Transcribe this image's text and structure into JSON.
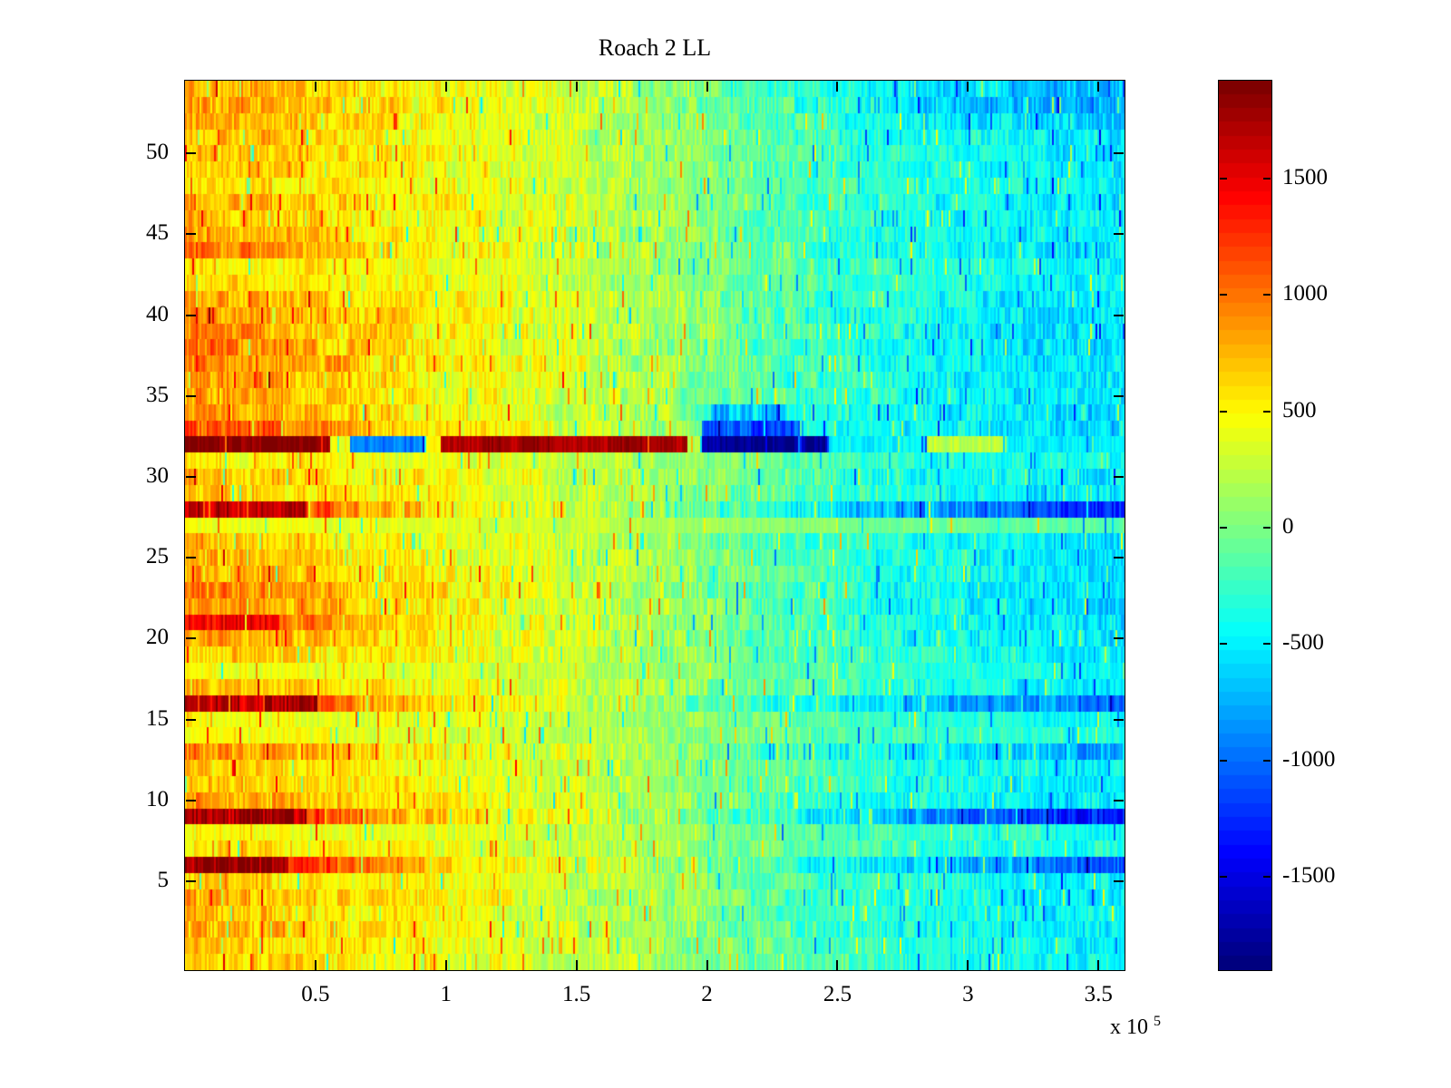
{
  "chart_data": {
    "type": "heatmap",
    "title": "Roach 2 LL",
    "colormap": "jet",
    "grid": false,
    "colorbar_position": "right",
    "x_axis": {
      "range": [
        0,
        360000
      ],
      "tick_values": [
        50000,
        100000,
        150000,
        200000,
        250000,
        300000,
        350000
      ],
      "tick_labels": [
        "0.5",
        "1",
        "1.5",
        "2",
        "2.5",
        "3",
        "3.5"
      ],
      "multiplier_base": "x 10",
      "multiplier_exp": "5"
    },
    "y_axis": {
      "range": [
        -0.5,
        54.5
      ],
      "tick_values": [
        5,
        10,
        15,
        20,
        25,
        30,
        35,
        40,
        45,
        50
      ],
      "tick_labels": [
        "5",
        "10",
        "15",
        "20",
        "25",
        "30",
        "35",
        "40",
        "45",
        "50"
      ]
    },
    "colorbar": {
      "range": [
        -1900,
        1920
      ],
      "tick_values": [
        1500,
        1000,
        500,
        0,
        -500,
        -1000,
        -1500
      ],
      "tick_labels": [
        "1500",
        "1000",
        "500",
        "0",
        "-500",
        "-1000",
        "-1500"
      ]
    },
    "n_rows": 55,
    "n_cols": 518,
    "rows": {
      "note": "Row profiles bottom-to-top (row value 0..54). Values sampled at profile_fracs of the x-range; noise = streak amplitude; segments = [xfrac0, xfrac1, value] overrides for anomalous bands.",
      "profile_fracs": [
        0,
        0.1,
        0.2,
        0.3,
        0.4,
        0.5,
        0.6,
        0.7,
        0.8,
        0.9,
        1
      ],
      "values": [
        [
          650,
          600,
          500,
          420,
          300,
          150,
          -50,
          -200,
          -300,
          -400,
          -480
        ],
        [
          700,
          620,
          520,
          430,
          300,
          160,
          -60,
          -220,
          -330,
          -420,
          -500
        ],
        [
          780,
          690,
          550,
          440,
          310,
          160,
          -70,
          -240,
          -350,
          -440,
          -510
        ],
        [
          750,
          660,
          540,
          430,
          310,
          160,
          -70,
          -230,
          -350,
          -440,
          -510
        ],
        [
          820,
          720,
          570,
          460,
          330,
          170,
          -90,
          -260,
          -380,
          -470,
          -540
        ],
        [
          700,
          630,
          520,
          420,
          300,
          150,
          -70,
          -240,
          -360,
          -450,
          -520
        ],
        [
          1850,
          1520,
          950,
          560,
          350,
          120,
          -200,
          -450,
          -650,
          -900,
          -1150
        ],
        [
          600,
          560,
          480,
          400,
          290,
          150,
          -40,
          -200,
          -300,
          -380,
          -450
        ],
        [
          500,
          470,
          420,
          360,
          260,
          130,
          -30,
          -170,
          -270,
          -350,
          -420
        ],
        [
          1750,
          1400,
          850,
          550,
          350,
          100,
          -250,
          -550,
          -850,
          -1200,
          -1450
        ],
        [
          850,
          740,
          580,
          460,
          330,
          160,
          -100,
          -280,
          -400,
          -500,
          -570
        ],
        [
          750,
          660,
          540,
          440,
          310,
          150,
          -80,
          -250,
          -370,
          -460,
          -530
        ],
        [
          700,
          630,
          520,
          420,
          300,
          150,
          -70,
          -240,
          -360,
          -450,
          -520
        ],
        [
          950,
          820,
          620,
          480,
          340,
          150,
          -150,
          -350,
          -500,
          -650,
          -800
        ],
        [
          480,
          450,
          400,
          340,
          250,
          120,
          -40,
          -180,
          -280,
          -360,
          -430
        ],
        [
          450,
          430,
          390,
          330,
          240,
          110,
          -50,
          -190,
          -290,
          -370,
          -440
        ],
        [
          1650,
          1350,
          820,
          520,
          330,
          100,
          -220,
          -480,
          -700,
          -900,
          -1050
        ],
        [
          800,
          700,
          560,
          450,
          320,
          160,
          -90,
          -260,
          -380,
          -470,
          -540
        ],
        [
          430,
          410,
          370,
          320,
          230,
          100,
          -60,
          -200,
          -300,
          -380,
          -450
        ],
        [
          700,
          630,
          520,
          420,
          300,
          140,
          -80,
          -250,
          -370,
          -460,
          -530
        ],
        [
          850,
          740,
          580,
          460,
          330,
          150,
          -110,
          -290,
          -410,
          -510,
          -580
        ],
        [
          1250,
          1050,
          700,
          480,
          320,
          140,
          -100,
          -280,
          -400,
          -500,
          -570
        ],
        [
          950,
          820,
          620,
          480,
          340,
          160,
          -110,
          -290,
          -420,
          -520,
          -590
        ],
        [
          1050,
          900,
          660,
          500,
          350,
          160,
          -130,
          -310,
          -440,
          -540,
          -610
        ],
        [
          850,
          740,
          580,
          460,
          330,
          150,
          -110,
          -280,
          -410,
          -510,
          -580
        ],
        [
          800,
          700,
          560,
          450,
          320,
          150,
          -100,
          -270,
          -400,
          -500,
          -570
        ],
        [
          750,
          660,
          540,
          430,
          310,
          140,
          -90,
          -260,
          -390,
          -480,
          -550
        ],
        [
          430,
          410,
          380,
          340,
          280,
          190,
          90,
          0,
          -60,
          -120,
          -160
        ],
        [
          1600,
          1300,
          800,
          500,
          320,
          80,
          -300,
          -600,
          -850,
          -1150,
          -1400
        ],
        [
          700,
          630,
          520,
          430,
          310,
          150,
          -80,
          -250,
          -380,
          -470,
          -540
        ],
        [
          780,
          690,
          550,
          440,
          320,
          150,
          -90,
          -260,
          -390,
          -480,
          -550
        ],
        [
          550,
          510,
          450,
          380,
          280,
          140,
          -50,
          -200,
          -320,
          -400,
          -470
        ],
        [
          900,
          780,
          600,
          470,
          330,
          150,
          -110,
          -290,
          -420,
          -520,
          -590
        ],
        [
          1150,
          950,
          680,
          500,
          350,
          180,
          -150,
          -400,
          -450,
          -520,
          -600
        ],
        [
          900,
          780,
          600,
          470,
          330,
          160,
          -200,
          -380,
          -440,
          -520,
          -590
        ],
        [
          850,
          740,
          580,
          460,
          330,
          150,
          -110,
          -280,
          -410,
          -500,
          -570
        ],
        [
          950,
          820,
          620,
          480,
          340,
          160,
          -120,
          -300,
          -430,
          -520,
          -590
        ],
        [
          1000,
          870,
          650,
          500,
          350,
          160,
          -120,
          -300,
          -430,
          -530,
          -600
        ],
        [
          1000,
          870,
          650,
          500,
          350,
          160,
          -130,
          -310,
          -440,
          -540,
          -610
        ],
        [
          950,
          820,
          620,
          480,
          340,
          150,
          -120,
          -300,
          -430,
          -530,
          -600
        ],
        [
          900,
          780,
          600,
          470,
          330,
          150,
          -110,
          -290,
          -420,
          -520,
          -590
        ],
        [
          850,
          740,
          580,
          460,
          330,
          150,
          -110,
          -280,
          -410,
          -510,
          -580
        ],
        [
          600,
          560,
          490,
          410,
          300,
          140,
          -70,
          -230,
          -350,
          -440,
          -510
        ],
        [
          550,
          520,
          460,
          390,
          280,
          130,
          -60,
          -220,
          -340,
          -430,
          -500
        ],
        [
          1000,
          870,
          650,
          500,
          350,
          160,
          -120,
          -300,
          -430,
          -530,
          -600
        ],
        [
          800,
          700,
          560,
          450,
          320,
          150,
          -100,
          -270,
          -400,
          -490,
          -560
        ],
        [
          750,
          660,
          540,
          430,
          310,
          140,
          -90,
          -260,
          -390,
          -480,
          -550
        ],
        [
          820,
          720,
          570,
          460,
          330,
          150,
          -100,
          -270,
          -400,
          -490,
          -560
        ],
        [
          600,
          560,
          490,
          410,
          300,
          140,
          -70,
          -230,
          -350,
          -440,
          -510
        ],
        [
          750,
          660,
          540,
          430,
          310,
          140,
          -90,
          -260,
          -390,
          -480,
          -550
        ],
        [
          800,
          700,
          560,
          450,
          320,
          150,
          -100,
          -270,
          -400,
          -490,
          -560
        ],
        [
          780,
          690,
          550,
          440,
          310,
          150,
          -90,
          -260,
          -390,
          -480,
          -550
        ],
        [
          850,
          740,
          580,
          460,
          330,
          140,
          -130,
          -320,
          -480,
          -600,
          -700
        ],
        [
          900,
          780,
          600,
          470,
          330,
          130,
          -160,
          -380,
          -600,
          -750,
          -850
        ],
        [
          820,
          720,
          570,
          460,
          320,
          120,
          -150,
          -350,
          -550,
          -700,
          -800
        ]
      ],
      "noise": [
        220,
        220,
        230,
        220,
        230,
        210,
        250,
        200,
        180,
        250,
        240,
        220,
        220,
        250,
        170,
        170,
        250,
        230,
        160,
        220,
        240,
        240,
        250,
        250,
        240,
        230,
        230,
        110,
        250,
        220,
        230,
        190,
        150,
        240,
        240,
        240,
        250,
        250,
        250,
        250,
        240,
        240,
        200,
        190,
        250,
        230,
        230,
        230,
        200,
        230,
        230,
        230,
        240,
        250,
        240
      ],
      "segments": {
        "6": [
          [
            0,
            0.11,
            1850
          ]
        ],
        "9": [
          [
            0,
            0.13,
            1780
          ]
        ],
        "16": [
          [
            0,
            0.14,
            1680
          ]
        ],
        "21": [
          [
            0,
            0.1,
            1550
          ]
        ],
        "28": [
          [
            0,
            0.13,
            1650
          ]
        ],
        "32": [
          [
            0,
            0.155,
            1880
          ],
          [
            0.155,
            0.175,
            450
          ],
          [
            0.175,
            0.255,
            -950
          ],
          [
            0.255,
            0.272,
            500
          ],
          [
            0.272,
            0.535,
            1780
          ],
          [
            0.535,
            0.55,
            200
          ],
          [
            0.55,
            0.685,
            -1820
          ],
          [
            0.685,
            0.79,
            -480
          ],
          [
            0.79,
            0.875,
            220
          ],
          [
            0.875,
            1,
            -480
          ]
        ],
        "33": [
          [
            0,
            0.1,
            1150
          ],
          [
            0.55,
            0.655,
            -1150
          ]
        ],
        "34": [
          [
            0.56,
            0.64,
            -700
          ]
        ]
      }
    }
  }
}
